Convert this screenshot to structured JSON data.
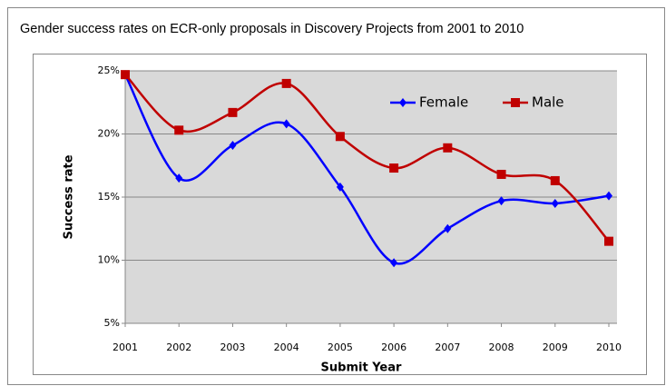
{
  "chart_data": {
    "type": "line",
    "title": "Gender success rates on ECR-only proposals in Discovery Projects from 2001 to 2010",
    "x_label": "Submit Year",
    "y_label": "Success rate",
    "categories": [
      "2001",
      "2002",
      "2003",
      "2004",
      "2005",
      "2006",
      "2007",
      "2008",
      "2009",
      "2010"
    ],
    "series": [
      {
        "name": "Female",
        "color": "#0000ff",
        "marker": "diamond",
        "values": [
          24.7,
          16.5,
          19.1,
          20.8,
          15.8,
          9.8,
          12.5,
          14.7,
          14.5,
          15.1
        ]
      },
      {
        "name": "Male",
        "color": "#c00000",
        "marker": "square",
        "values": [
          24.7,
          20.3,
          21.7,
          24.0,
          19.8,
          17.3,
          18.9,
          16.8,
          16.3,
          11.5
        ]
      }
    ],
    "ylim": [
      5,
      25
    ],
    "yticks": [
      {
        "value": 5,
        "label": "5%"
      },
      {
        "value": 10,
        "label": "10%"
      },
      {
        "value": 15,
        "label": "15%"
      },
      {
        "value": 20,
        "label": "20%"
      },
      {
        "value": 25,
        "label": "25%"
      }
    ],
    "grid": true,
    "smooth": true,
    "legend": "top-right"
  }
}
